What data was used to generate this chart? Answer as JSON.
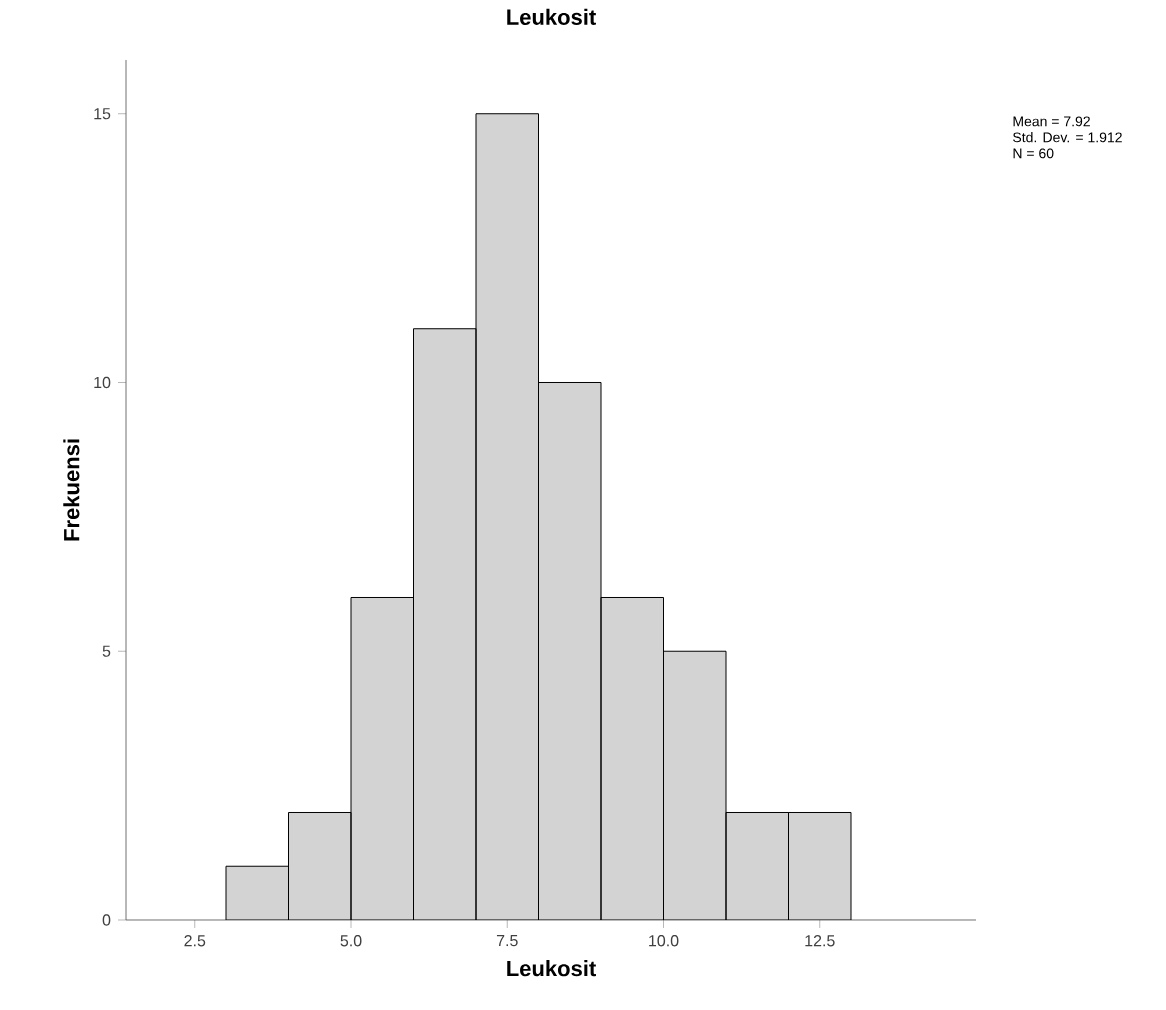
{
  "chart_data": {
    "type": "histogram",
    "title": "Leukosit",
    "xlabel": "Leukosit",
    "ylabel": "Frekuensi",
    "bins": [
      3,
      4,
      5,
      6,
      7,
      8,
      9,
      10,
      11,
      12,
      13
    ],
    "values": [
      1,
      2,
      6,
      11,
      15,
      10,
      6,
      5,
      2,
      2
    ],
    "color": "#d3d3d3",
    "xlim": [
      1.4,
      15
    ],
    "xticks": [
      {
        "value": 2.5,
        "label": "2.5"
      },
      {
        "value": 5.0,
        "label": "5.0"
      },
      {
        "value": 7.5,
        "label": "7.5"
      },
      {
        "value": 10.0,
        "label": "10.0"
      },
      {
        "value": 12.5,
        "label": "12.5"
      }
    ],
    "ylim": [
      0,
      16
    ],
    "yticks": [
      0,
      5,
      10,
      15
    ],
    "grid": false,
    "annotations": [
      "Mean = 7.92",
      "Std. Dev. = 1.912",
      "N = 60"
    ]
  }
}
